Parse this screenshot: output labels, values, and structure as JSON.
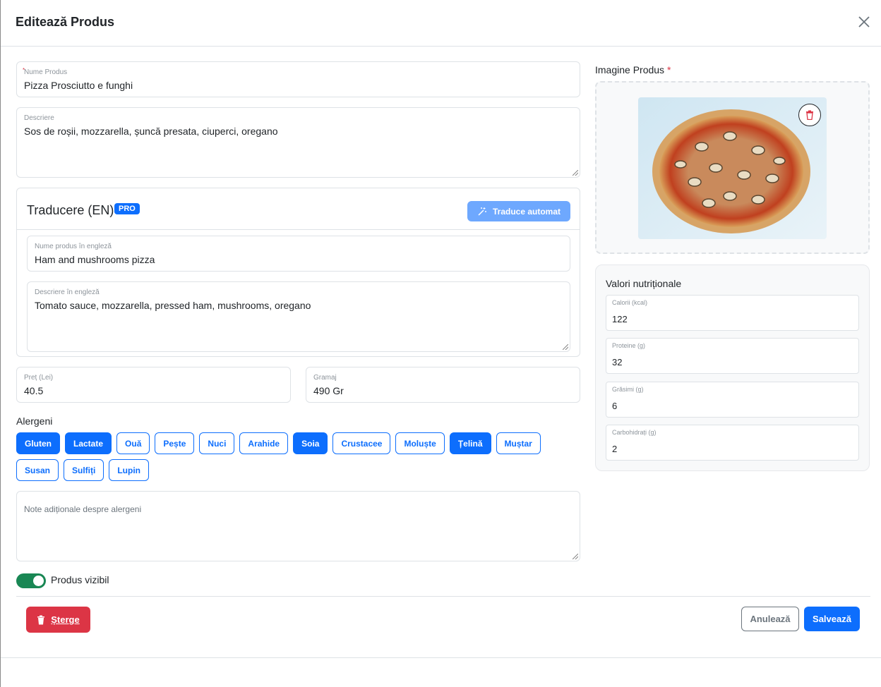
{
  "modal": {
    "title": "Editează Produs",
    "close_icon": "close-icon"
  },
  "name": {
    "label": "Nume Produs",
    "required_mark": "*",
    "value": "Pizza Prosciutto e funghi"
  },
  "description": {
    "label": "Descriere",
    "value": "Sos de roșii, mozzarella, șuncă presata, ciuperci, oregano"
  },
  "translation": {
    "title": "Traducere (EN)",
    "badge": "PRO",
    "auto_button": "Traduce automat",
    "name_label": "Nume produs în engleză",
    "name_value": "Ham and mushrooms pizza",
    "desc_label": "Descriere în engleză",
    "desc_value": "Tomato sauce, mozzarella, pressed ham, mushrooms, oregano"
  },
  "price": {
    "label": "Preț (Lei)",
    "value": "40.5"
  },
  "weight": {
    "label": "Gramaj",
    "value": "490 Gr"
  },
  "allergens": {
    "label": "Alergeni",
    "items": [
      {
        "label": "Gluten",
        "selected": true
      },
      {
        "label": "Lactate",
        "selected": true
      },
      {
        "label": "Ouă",
        "selected": false
      },
      {
        "label": "Pește",
        "selected": false
      },
      {
        "label": "Nuci",
        "selected": false
      },
      {
        "label": "Arahide",
        "selected": false
      },
      {
        "label": "Soia",
        "selected": true
      },
      {
        "label": "Crustacee",
        "selected": false
      },
      {
        "label": "Moluște",
        "selected": false
      },
      {
        "label": "Țelină",
        "selected": true
      },
      {
        "label": "Muștar",
        "selected": false
      },
      {
        "label": "Susan",
        "selected": false
      },
      {
        "label": "Sulfiți",
        "selected": false
      },
      {
        "label": "Lupin",
        "selected": false
      }
    ],
    "notes_placeholder": "Note adiționale despre alergeni"
  },
  "visible": {
    "label": "Produs vizibil",
    "on": true
  },
  "image": {
    "label": "Imagine Produs",
    "required_mark": "*"
  },
  "nutrition": {
    "title": "Valori nutriționale",
    "fields": [
      {
        "label": "Calorii (kcal)",
        "value": "122"
      },
      {
        "label": "Proteine (g)",
        "value": "32"
      },
      {
        "label": "Grăsimi (g)",
        "value": "6"
      },
      {
        "label": "Carbohidrați (g)",
        "value": "2"
      }
    ]
  },
  "footer": {
    "delete": "Șterge",
    "cancel": "Anulează",
    "save": "Salvează"
  },
  "colors": {
    "primary": "#0d6efd",
    "danger": "#dc3545",
    "success": "#198754"
  }
}
